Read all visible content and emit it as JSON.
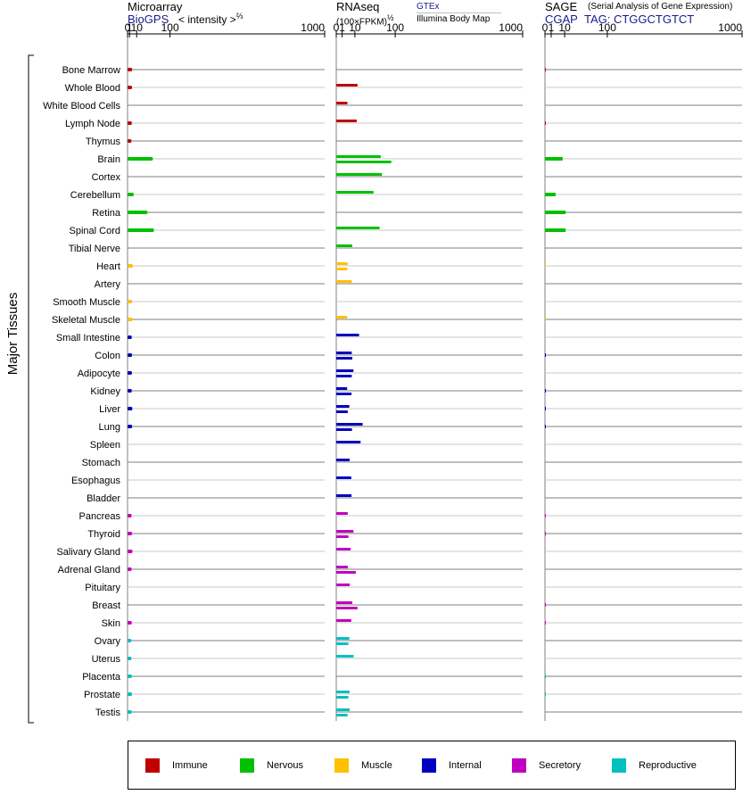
{
  "panels": [
    {
      "title": "Microarray",
      "source": "BioGPS",
      "unit_label": "< intensity >",
      "unit_exponent": "⅔"
    },
    {
      "title": "RNAseq",
      "unit_label": "(100×FPKM)",
      "unit_exponent": "½",
      "source_line1": "GTEx",
      "source_line2": "Illumina Body Map"
    },
    {
      "title": "SAGE",
      "subtitle": "(Serial Analysis of Gene Expression)",
      "source": "CGAP",
      "tag": "TAG: CTGGCTGTCT"
    }
  ],
  "y_axis_label": "Major Tissues",
  "legend": [
    {
      "label": "Immune",
      "color": "#c00000"
    },
    {
      "label": "Nervous",
      "color": "#00c000"
    },
    {
      "label": "Muscle",
      "color": "#ffc000"
    },
    {
      "label": "Internal",
      "color": "#0000c0"
    },
    {
      "label": "Secretory",
      "color": "#c000c0"
    },
    {
      "label": "Reproductive",
      "color": "#00c0c0"
    }
  ],
  "chart_data": {
    "type": "bar",
    "orientation": "horizontal",
    "x_scale": "power",
    "ticks": [
      0,
      1,
      10,
      100,
      1000
    ],
    "xlim": [
      0,
      1000
    ],
    "categories": [
      "Bone Marrow",
      "Whole Blood",
      "White Blood Cells",
      "Lymph Node",
      "Thymus",
      "Brain",
      "Cortex",
      "Cerebellum",
      "Retina",
      "Spinal Cord",
      "Tibial Nerve",
      "Heart",
      "Artery",
      "Smooth Muscle",
      "Skeletal Muscle",
      "Small Intestine",
      "Colon",
      "Adipocyte",
      "Kidney",
      "Liver",
      "Lung",
      "Spleen",
      "Stomach",
      "Esophagus",
      "Bladder",
      "Pancreas",
      "Thyroid",
      "Salivary Gland",
      "Adrenal Gland",
      "Pituitary",
      "Breast",
      "Skin",
      "Ovary",
      "Uterus",
      "Placenta",
      "Prostate",
      "Testis"
    ],
    "systems": [
      "Immune",
      "Immune",
      "Immune",
      "Immune",
      "Immune",
      "Nervous",
      "Nervous",
      "Nervous",
      "Nervous",
      "Nervous",
      "Nervous",
      "Muscle",
      "Muscle",
      "Muscle",
      "Muscle",
      "Internal",
      "Internal",
      "Internal",
      "Internal",
      "Internal",
      "Internal",
      "Internal",
      "Internal",
      "Internal",
      "Internal",
      "Secretory",
      "Secretory",
      "Secretory",
      "Secretory",
      "Secretory",
      "Secretory",
      "Secretory",
      "Reproductive",
      "Reproductive",
      "Reproductive",
      "Reproductive",
      "Reproductive"
    ],
    "microarray": [
      3.5,
      3.4,
      null,
      3.2,
      2.8,
      46,
      null,
      5.5,
      32,
      49,
      null,
      4.3,
      null,
      3.5,
      3.9,
      3.1,
      3.4,
      3.3,
      3.1,
      3.8,
      3.5,
      null,
      null,
      null,
      null,
      2.9,
      3.4,
      3.9,
      2.9,
      null,
      null,
      3.1,
      2.6,
      2.8,
      3.2,
      3.4,
      3.0
    ],
    "rnaseq": [
      [
        null,
        null
      ],
      [
        13,
        null
      ],
      [
        3.6,
        null
      ],
      [
        12,
        null
      ],
      [
        null,
        null
      ],
      [
        57,
        87
      ],
      [
        60,
        null
      ],
      [
        40,
        null
      ],
      [
        null,
        null
      ],
      [
        54,
        null
      ],
      [
        7.3,
        null
      ],
      [
        3.8,
        3.5
      ],
      [
        6.9,
        null
      ],
      [
        null,
        null
      ],
      [
        3.4,
        null
      ],
      [
        15,
        null
      ],
      [
        6.9,
        7.4
      ],
      [
        8.5,
        6.9
      ],
      [
        3.4,
        6.7
      ],
      [
        4.9,
        3.8
      ],
      [
        20,
        7.1
      ],
      [
        17,
        null
      ],
      [
        5.1,
        null
      ],
      [
        6.5,
        null
      ],
      [
        6.7,
        null
      ],
      [
        3.8,
        null
      ],
      [
        8.5,
        4.3
      ],
      [
        6.0,
        null
      ],
      [
        3.8,
        11
      ],
      [
        5.3,
        null
      ],
      [
        7.4,
        13
      ],
      [
        6.5,
        null
      ],
      [
        4.9,
        4.2
      ],
      [
        8.7,
        null
      ],
      [
        null,
        null
      ],
      [
        5.1,
        4.2
      ],
      [
        5.2,
        3.7
      ]
    ],
    "sage": [
      0.02,
      null,
      null,
      0.02,
      null,
      8,
      null,
      2.9,
      11,
      11,
      null,
      0.01,
      null,
      null,
      0.01,
      null,
      0.02,
      null,
      0.02,
      0.02,
      0.02,
      null,
      null,
      null,
      null,
      0.02,
      0.02,
      null,
      null,
      null,
      0.02,
      0.02,
      null,
      null,
      0.01,
      0.01,
      null
    ]
  }
}
